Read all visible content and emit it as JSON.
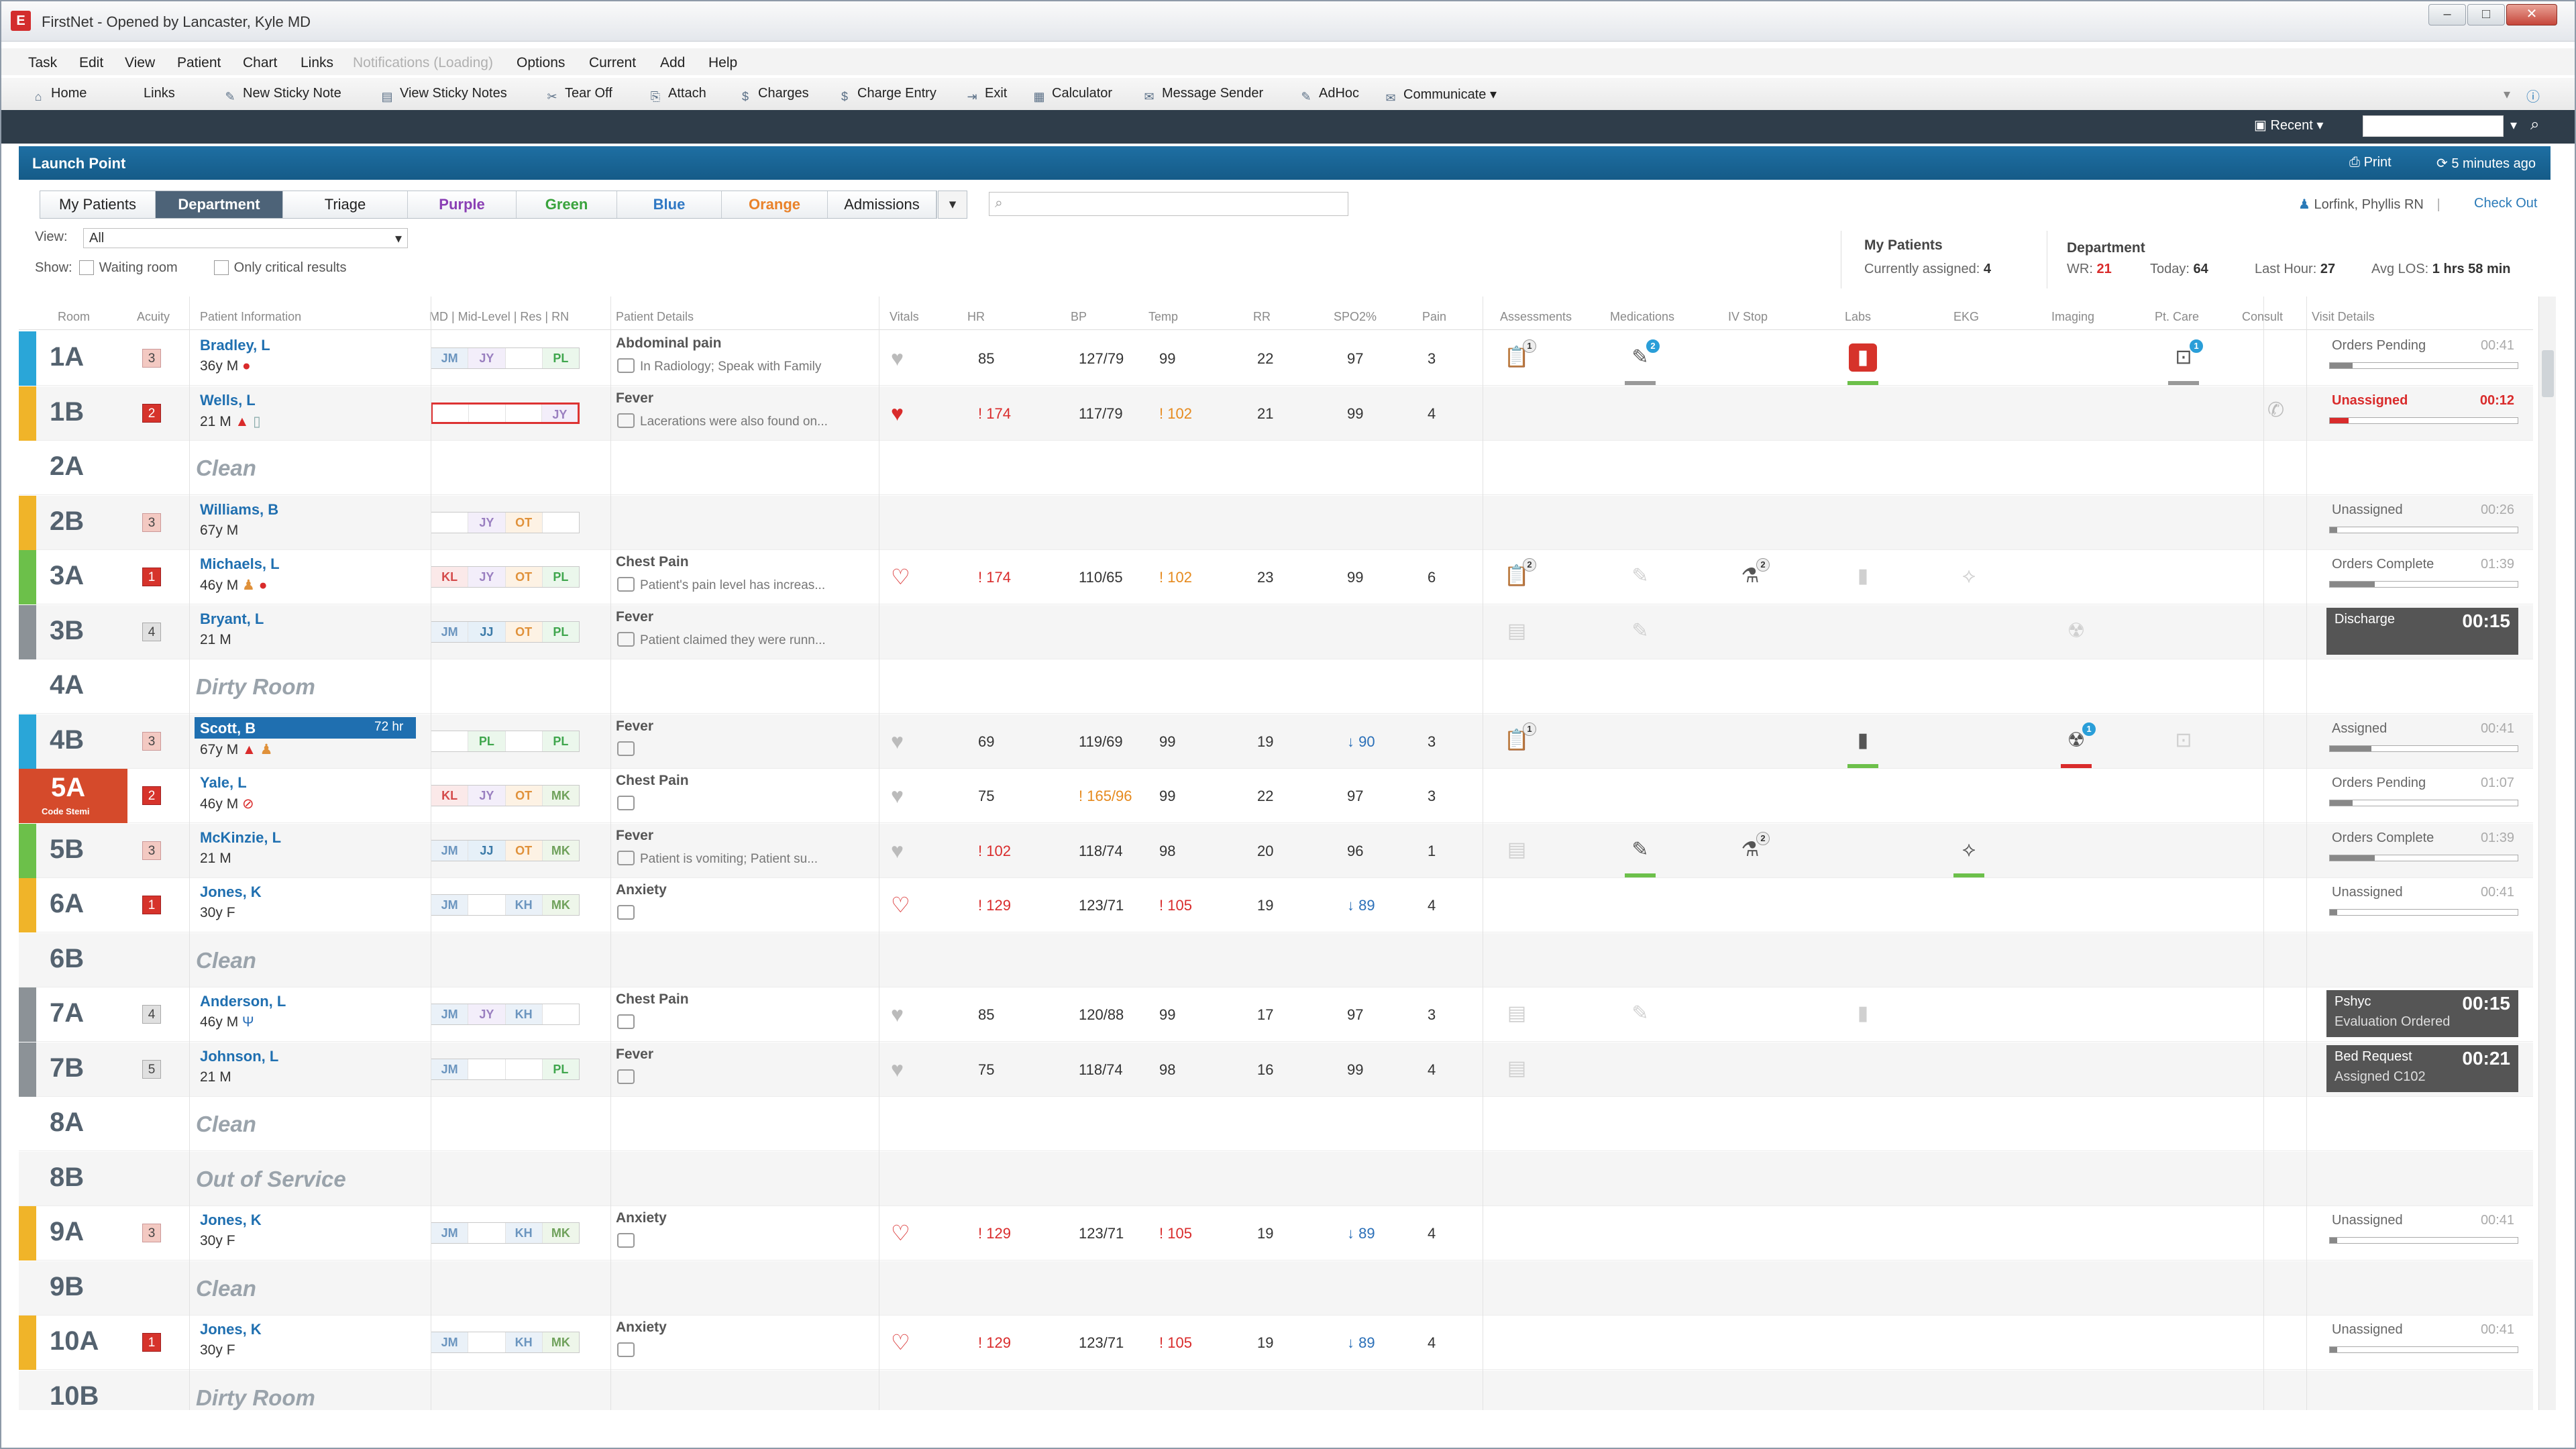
{
  "window": {
    "title": "FirstNet - Opened by Lancaster, Kyle MD",
    "app_icon": "E"
  },
  "menu": [
    "Task",
    "Edit",
    "View",
    "Patient",
    "Chart",
    "Links",
    "Notifications (Loading)",
    "Options",
    "Current",
    "Add",
    "Help"
  ],
  "toolbar": {
    "home": "Home",
    "links": "Links",
    "new_sticky": "New Sticky Note",
    "view_sticky": "View Sticky Notes",
    "tear_off": "Tear Off",
    "attach": "Attach",
    "charges": "Charges",
    "charge_entry": "Charge Entry",
    "exit": "Exit",
    "calculator": "Calculator",
    "message_sender": "Message Sender",
    "adhoc": "AdHoc",
    "communicate": "Communicate"
  },
  "recent": "Recent",
  "launch": {
    "title": "Launch Point",
    "print": "Print",
    "updated": "5 minutes ago"
  },
  "tabs": [
    {
      "label": "My Patients",
      "color": "#222"
    },
    {
      "label": "Department",
      "color": "#fff"
    },
    {
      "label": "Triage",
      "color": "#222"
    },
    {
      "label": "Purple",
      "color": "#8a3fb4"
    },
    {
      "label": "Green",
      "color": "#39a33c"
    },
    {
      "label": "Blue",
      "color": "#2f78c4"
    },
    {
      "label": "Orange",
      "color": "#e9822a"
    },
    {
      "label": "Admissions",
      "color": "#222"
    }
  ],
  "view": {
    "label": "View:",
    "value": "All"
  },
  "show": {
    "label": "Show:",
    "waiting": "Waiting room",
    "critical": "Only critical results"
  },
  "user": {
    "nurse": "Lorfink, Phyllis RN",
    "checkout": "Check Out"
  },
  "summary": {
    "my_title": "My Patients",
    "assigned_label": "Currently assigned:",
    "assigned": "4",
    "dept_title": "Department",
    "wr_label": "WR:",
    "wr": "21",
    "today_label": "Today:",
    "today": "64",
    "last_label": "Last Hour:",
    "last": "27",
    "los_label": "Avg LOS:",
    "los": "1 hrs 58 min"
  },
  "columns": {
    "room": "Room",
    "acuity": "Acuity",
    "patient": "Patient Information",
    "care": "MD | Mid-Level | Res | RN",
    "details": "Patient Details",
    "vitals": "Vitals",
    "hr": "HR",
    "bp": "BP",
    "temp": "Temp",
    "rr": "RR",
    "spo2": "SPO2%",
    "pain": "Pain",
    "assess": "Assessments",
    "meds": "Medications",
    "iv": "IV Stop",
    "labs": "Labs",
    "ekg": "EKG",
    "imaging": "Imaging",
    "ptcare": "Pt. Care",
    "consult": "Consult",
    "visit": "Visit Details"
  },
  "rows": [
    {
      "room": "1A",
      "strip": "#2aa6d8",
      "acuity": "3",
      "name": "Bradley, L",
      "info": "36y M",
      "care": [
        "JM",
        "JY",
        "",
        "PL"
      ],
      "detail": "Abdominal pain",
      "sub": "In Radiology; Speak with Family",
      "heart": "grey",
      "hr": "85",
      "bp": "127/79",
      "temp": "99",
      "rr": "22",
      "spo2": "97",
      "pain": "3",
      "status": "Orders Pending",
      "time": "00:41"
    },
    {
      "room": "1B",
      "strip": "#f0b429",
      "acuity": "2",
      "name": "Wells, L",
      "info": "21 M",
      "care": [
        "",
        "",
        "",
        "JY"
      ],
      "detail": "Fever",
      "sub": "Lacerations were also found on...",
      "heart": "red",
      "hr": "! 174",
      "bp": "117/79",
      "temp": "! 102",
      "rr": "21",
      "spo2": "99",
      "pain": "4",
      "status": "Unassigned",
      "time": "00:12"
    },
    {
      "room": "2A",
      "clean": "Clean"
    },
    {
      "room": "2B",
      "strip": "#f0b429",
      "acuity": "3",
      "name": "Williams, B",
      "info": "67y M",
      "care": [
        "",
        "JY",
        "OT",
        ""
      ],
      "status": "Unassigned",
      "time": "00:26"
    },
    {
      "room": "3A",
      "strip": "#6cc04a",
      "acuity": "1",
      "name": "Michaels, L",
      "info": "46y M",
      "care": [
        "KL",
        "JY",
        "OT",
        "PL"
      ],
      "detail": "Chest Pain",
      "sub": "Patient's pain level has increas...",
      "heart": "outline",
      "hr": "! 174",
      "bp": "110/65",
      "temp": "! 102",
      "rr": "23",
      "spo2": "99",
      "pain": "6",
      "status": "Orders Complete",
      "time": "01:39"
    },
    {
      "room": "3B",
      "strip": "#8c9297",
      "acuity": "4",
      "name": "Bryant, L",
      "info": "21 M",
      "care": [
        "JM",
        "JJ",
        "OT",
        "PL"
      ],
      "detail": "Fever",
      "sub": "Patient claimed they were runn...",
      "box": "Discharge",
      "boxtime": "00:15"
    },
    {
      "room": "4A",
      "clean": "Dirty Room"
    },
    {
      "room": "4B",
      "strip": "#2aa6d8",
      "acuity": "3",
      "name": "Scott, B",
      "hours": "72 hr",
      "info": "67y M",
      "care": [
        "",
        "PL",
        "",
        "PL"
      ],
      "detail": "Fever",
      "heart": "grey",
      "hr": "69",
      "bp": "119/69",
      "temp": "99",
      "rr": "19",
      "spo2": "↓ 90",
      "pain": "3",
      "status": "Assigned",
      "time": "00:41"
    },
    {
      "room": "5A",
      "strip": "#d54a2b",
      "roomsub": "Code Stemi",
      "acuity": "2",
      "name": "Yale, L",
      "info": "46y M",
      "care": [
        "KL",
        "JY",
        "OT",
        "MK"
      ],
      "detail": "Chest Pain",
      "heart": "grey",
      "hr": "75",
      "bp": "! 165/96",
      "temp": "99",
      "rr": "22",
      "spo2": "97",
      "pain": "3",
      "status": "Orders Pending",
      "time": "01:07"
    },
    {
      "room": "5B",
      "strip": "#6cc04a",
      "acuity": "3",
      "name": "McKinzie, L",
      "info": "21 M",
      "care": [
        "JM",
        "JJ",
        "OT",
        "MK"
      ],
      "detail": "Fever",
      "sub": "Patient is vomiting; Patient su...",
      "heart": "grey",
      "hr": "! 102",
      "bp": "118/74",
      "temp": "98",
      "rr": "20",
      "spo2": "96",
      "pain": "1",
      "status": "Orders Complete",
      "time": "01:39"
    },
    {
      "room": "6A",
      "strip": "#f0b429",
      "acuity": "1",
      "name": "Jones, K",
      "info": "30y F",
      "care": [
        "JM",
        "",
        "KH",
        "MK"
      ],
      "detail": "Anxiety",
      "heart": "outline",
      "hr": "! 129",
      "bp": "123/71",
      "temp": "! 105",
      "rr": "19",
      "spo2": "↓ 89",
      "pain": "4",
      "status": "Unassigned",
      "time": "00:41"
    },
    {
      "room": "6B",
      "clean": "Clean"
    },
    {
      "room": "7A",
      "strip": "#8c9297",
      "acuity": "4",
      "name": "Anderson, L",
      "info": "46y M",
      "care": [
        "JM",
        "JY",
        "KH",
        ""
      ],
      "detail": "Chest Pain",
      "heart": "grey",
      "hr": "85",
      "bp": "120/88",
      "temp": "99",
      "rr": "17",
      "spo2": "97",
      "pain": "3",
      "box": "Pshyc",
      "box2": "Evaluation Ordered",
      "boxtime": "00:15"
    },
    {
      "room": "7B",
      "strip": "#8c9297",
      "acuity": "5",
      "name": "Johnson, L",
      "info": "21 M",
      "care": [
        "JM",
        "",
        "",
        "PL"
      ],
      "detail": "Fever",
      "heart": "grey",
      "hr": "75",
      "bp": "118/74",
      "temp": "98",
      "rr": "16",
      "spo2": "99",
      "pain": "4",
      "box": "Bed Request",
      "box2": "Assigned C102",
      "boxtime": "00:21"
    },
    {
      "room": "8A",
      "clean": "Clean"
    },
    {
      "room": "8B",
      "clean": "Out of Service"
    },
    {
      "room": "9A",
      "strip": "#f0b429",
      "acuity": "3",
      "name": "Jones, K",
      "info": "30y F",
      "care": [
        "JM",
        "",
        "KH",
        "MK"
      ],
      "detail": "Anxiety",
      "heart": "outline",
      "hr": "! 129",
      "bp": "123/71",
      "temp": "! 105",
      "rr": "19",
      "spo2": "↓ 89",
      "pain": "4",
      "status": "Unassigned",
      "time": "00:41"
    },
    {
      "room": "9B",
      "clean": "Clean"
    },
    {
      "room": "10A",
      "strip": "#f0b429",
      "acuity": "1",
      "name": "Jones, K",
      "info": "30y F",
      "care": [
        "JM",
        "",
        "KH",
        "MK"
      ],
      "detail": "Anxiety",
      "heart": "outline",
      "hr": "! 129",
      "bp": "123/71",
      "temp": "! 105",
      "rr": "19",
      "spo2": "↓ 89",
      "pain": "4",
      "status": "Unassigned",
      "time": "00:41"
    },
    {
      "room": "10B",
      "clean": "Dirty Room"
    }
  ]
}
